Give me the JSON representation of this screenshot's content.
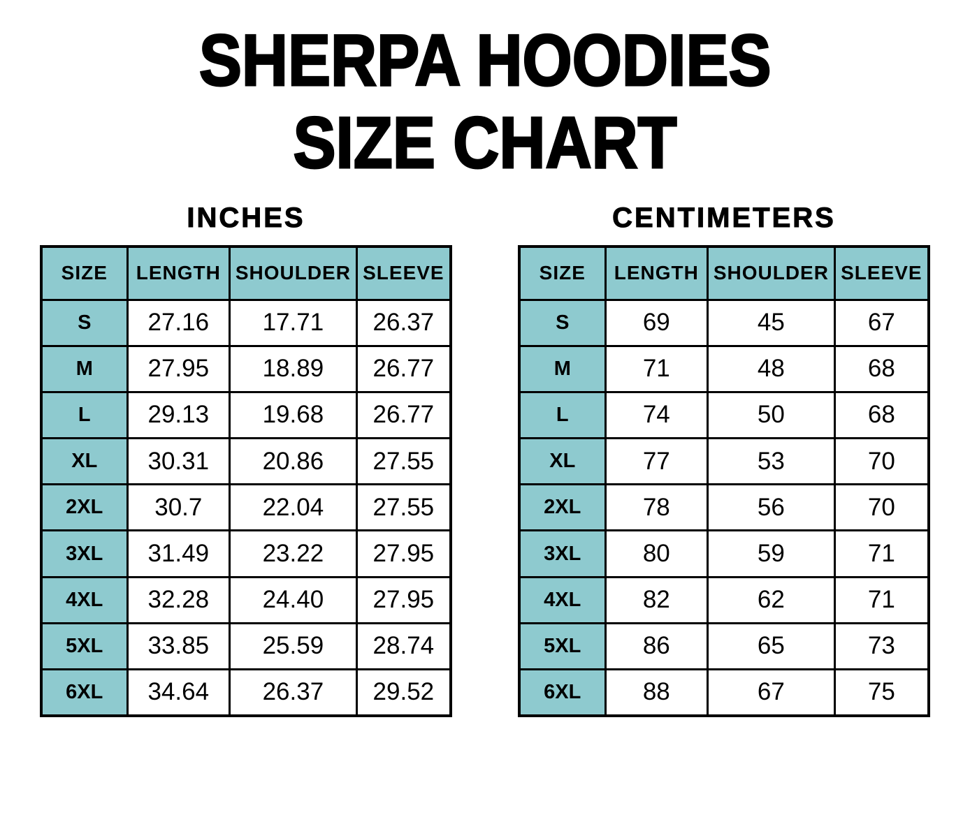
{
  "title": {
    "line1": "SHERPA HOODIES",
    "line2": "SIZE CHART"
  },
  "colors": {
    "header_fill": "#8ecacf",
    "border": "#000000",
    "text": "#000000",
    "background": "#ffffff"
  },
  "tables": [
    {
      "unit_label": "INCHES",
      "headers": [
        "SIZE",
        "LENGTH",
        "SHOULDER",
        "SLEEVE"
      ],
      "rows": [
        [
          "S",
          "27.16",
          "17.71",
          "26.37"
        ],
        [
          "M",
          "27.95",
          "18.89",
          "26.77"
        ],
        [
          "L",
          "29.13",
          "19.68",
          "26.77"
        ],
        [
          "XL",
          "30.31",
          "20.86",
          "27.55"
        ],
        [
          "2XL",
          "30.7",
          "22.04",
          "27.55"
        ],
        [
          "3XL",
          "31.49",
          "23.22",
          "27.95"
        ],
        [
          "4XL",
          "32.28",
          "24.40",
          "27.95"
        ],
        [
          "5XL",
          "33.85",
          "25.59",
          "28.74"
        ],
        [
          "6XL",
          "34.64",
          "26.37",
          "29.52"
        ]
      ]
    },
    {
      "unit_label": "CENTIMETERS",
      "headers": [
        "SIZE",
        "LENGTH",
        "SHOULDER",
        "SLEEVE"
      ],
      "rows": [
        [
          "S",
          "69",
          "45",
          "67"
        ],
        [
          "M",
          "71",
          "48",
          "68"
        ],
        [
          "L",
          "74",
          "50",
          "68"
        ],
        [
          "XL",
          "77",
          "53",
          "70"
        ],
        [
          "2XL",
          "78",
          "56",
          "70"
        ],
        [
          "3XL",
          "80",
          "59",
          "71"
        ],
        [
          "4XL",
          "82",
          "62",
          "71"
        ],
        [
          "5XL",
          "86",
          "65",
          "73"
        ],
        [
          "6XL",
          "88",
          "67",
          "75"
        ]
      ]
    }
  ],
  "chart_data": [
    {
      "type": "table",
      "title": "SHERPA HOODIES SIZE CHART — INCHES",
      "columns": [
        "SIZE",
        "LENGTH",
        "SHOULDER",
        "SLEEVE"
      ],
      "rows": [
        [
          "S",
          27.16,
          17.71,
          26.37
        ],
        [
          "M",
          27.95,
          18.89,
          26.77
        ],
        [
          "L",
          29.13,
          19.68,
          26.77
        ],
        [
          "XL",
          30.31,
          20.86,
          27.55
        ],
        [
          "2XL",
          30.7,
          22.04,
          27.55
        ],
        [
          "3XL",
          31.49,
          23.22,
          27.95
        ],
        [
          "4XL",
          32.28,
          24.4,
          27.95
        ],
        [
          "5XL",
          33.85,
          25.59,
          28.74
        ],
        [
          "6XL",
          34.64,
          26.37,
          29.52
        ]
      ]
    },
    {
      "type": "table",
      "title": "SHERPA HOODIES SIZE CHART — CENTIMETERS",
      "columns": [
        "SIZE",
        "LENGTH",
        "SHOULDER",
        "SLEEVE"
      ],
      "rows": [
        [
          "S",
          69,
          45,
          67
        ],
        [
          "M",
          71,
          48,
          68
        ],
        [
          "L",
          74,
          50,
          68
        ],
        [
          "XL",
          77,
          53,
          70
        ],
        [
          "2XL",
          78,
          56,
          70
        ],
        [
          "3XL",
          80,
          59,
          71
        ],
        [
          "4XL",
          82,
          62,
          71
        ],
        [
          "5XL",
          86,
          65,
          73
        ],
        [
          "6XL",
          88,
          67,
          75
        ]
      ]
    }
  ]
}
